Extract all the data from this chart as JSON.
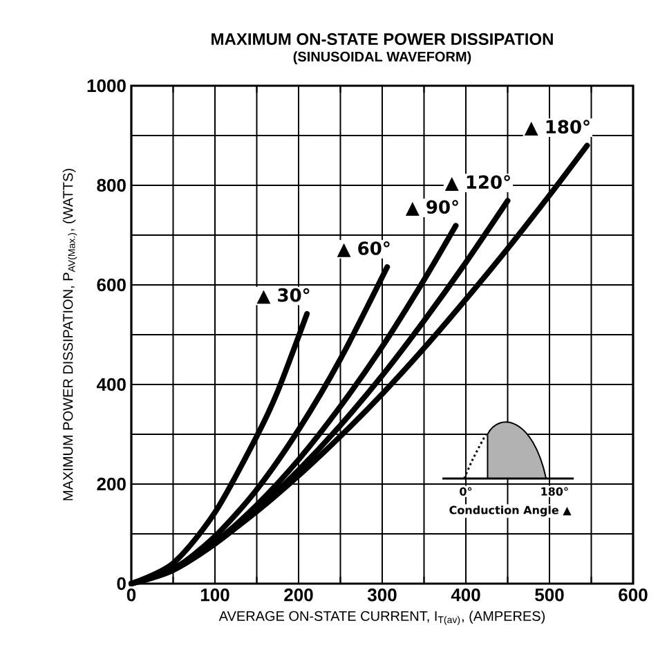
{
  "chart_data": {
    "type": "line",
    "title": "MAXIMUM ON-STATE POWER DISSIPATION",
    "subtitle": "(SINUSOIDAL WAVEFORM)",
    "xlabel": "AVERAGE ON-STATE CURRENT, I$_{T(av)}$, (AMPERES)",
    "ylabel": "MAXIMUM POWER DISSIPATION, P$_{AV(Max.)}$, (WATTS)",
    "xlim": [
      0,
      600
    ],
    "ylim": [
      0,
      1000
    ],
    "xticks": [
      0,
      {
        "value": 50,
        "label": null
      },
      100,
      {
        "value": 150,
        "label": null
      },
      200,
      {
        "value": 250,
        "label": null
      },
      300,
      {
        "value": 350,
        "label": null
      },
      400,
      {
        "value": 450,
        "label": null
      },
      500,
      {
        "value": 550,
        "label": null
      },
      600
    ],
    "yticks": [
      0,
      {
        "value": 100,
        "label": null
      },
      200,
      {
        "value": 300,
        "label": null
      },
      400,
      {
        "value": 500,
        "label": null
      },
      600,
      {
        "value": 700,
        "label": null
      },
      800,
      {
        "value": 900,
        "label": null
      },
      1000
    ],
    "grid": true,
    "legend": false,
    "marker": "none",
    "line_style": "solid",
    "series": [
      {
        "name": "▲ 30°",
        "color": "#000000",
        "x": [
          0,
          50,
          100,
          150,
          175,
          210
        ],
        "values": [
          0,
          41,
          143,
          296,
          386,
          542
        ]
      },
      {
        "name": "▲ 60°",
        "color": "#000000",
        "x": [
          0,
          50,
          100,
          150,
          200,
          250,
          306
        ],
        "values": [
          0,
          29,
          95,
          189,
          309,
          451,
          636
        ]
      },
      {
        "name": "▲ 90°",
        "color": "#000000",
        "x": [
          0,
          50,
          100,
          150,
          200,
          250,
          300,
          350,
          388
        ],
        "values": [
          0,
          27,
          83,
          158,
          249,
          356,
          476,
          610,
          719
        ]
      },
      {
        "name": "▲ 120°",
        "color": "#000000",
        "x": [
          0,
          50,
          100,
          150,
          200,
          250,
          300,
          350,
          400,
          450
        ],
        "values": [
          0,
          28,
          80,
          148,
          228,
          318,
          418,
          528,
          645,
          769
        ]
      },
      {
        "name": "▲ 180°",
        "color": "#000000",
        "x": [
          0,
          50,
          100,
          150,
          200,
          250,
          300,
          350,
          400,
          450,
          500,
          545
        ],
        "values": [
          0,
          31,
          82,
          145,
          217,
          296,
          381,
          473,
          571,
          673,
          780,
          880
        ]
      }
    ],
    "annotations": [
      "0°",
      "180°",
      "Conduction Angle ▲"
    ]
  }
}
